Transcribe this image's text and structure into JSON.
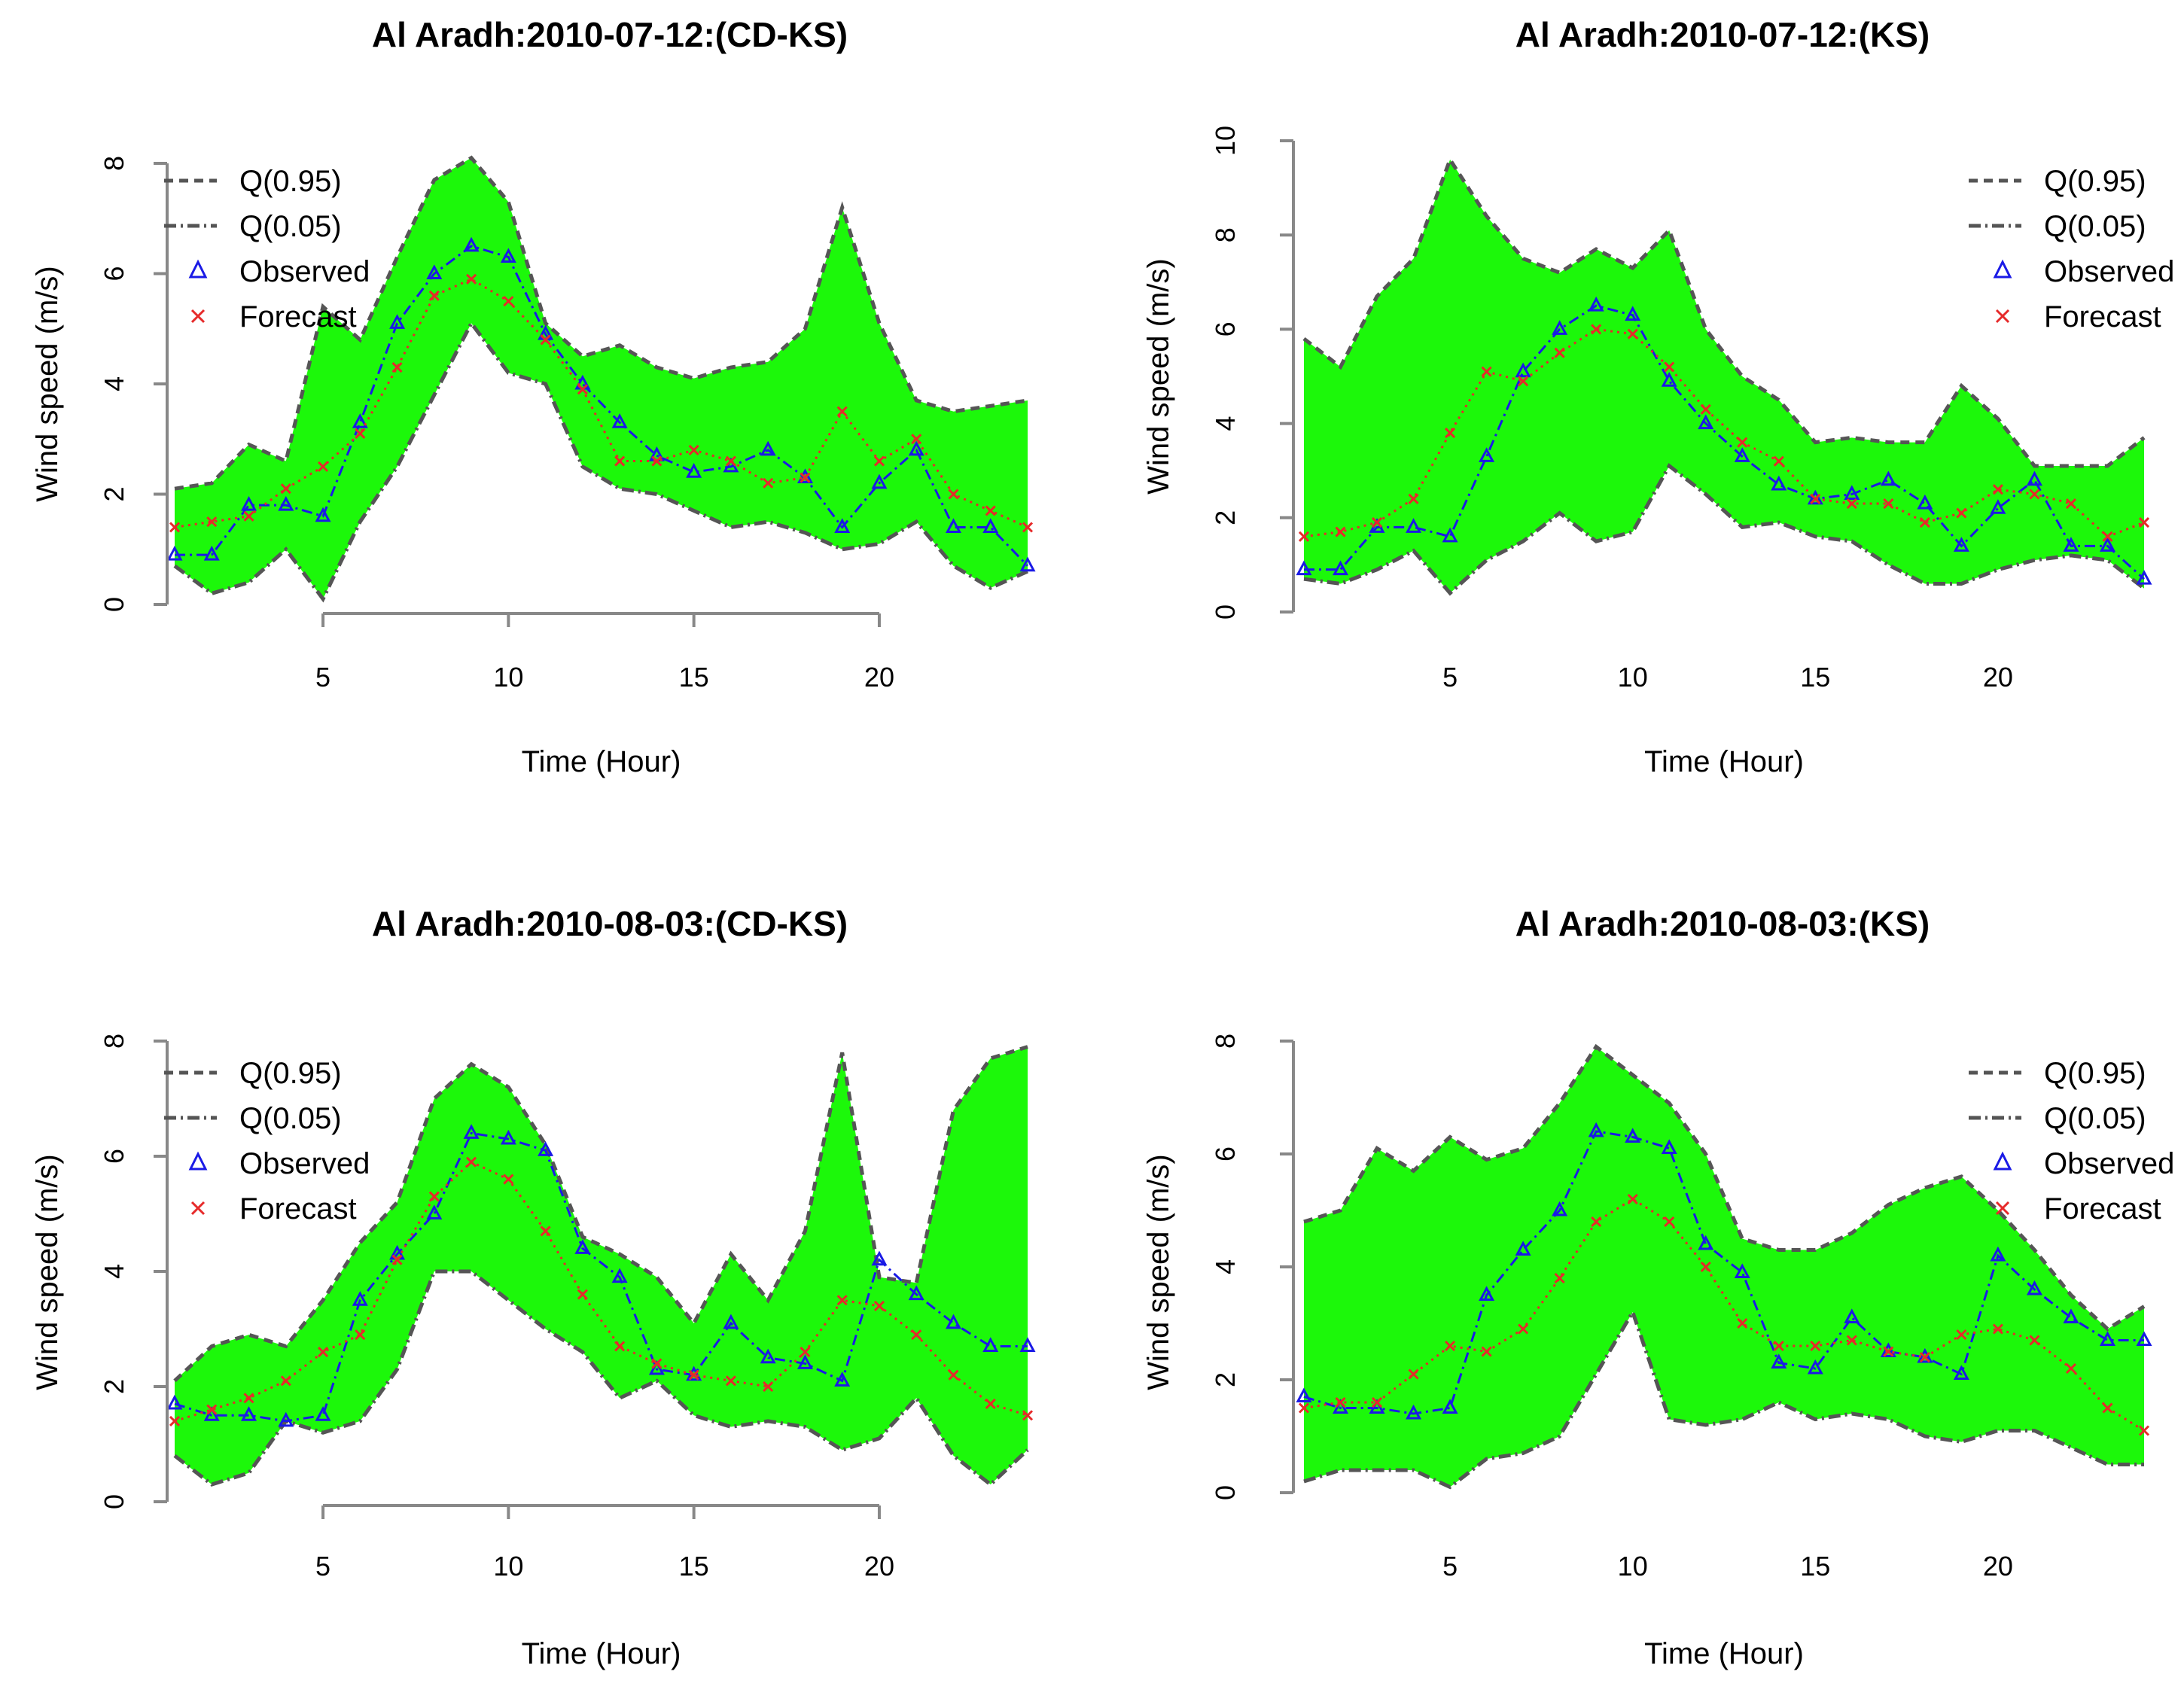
{
  "colors": {
    "band": "#1CF80A",
    "observed": "#1A1AE6",
    "forecast": "#E62A2A",
    "quantile": "#555555"
  },
  "legend": [
    "Q(0.95)",
    "Q(0.05)",
    "Observed",
    "Forecast"
  ],
  "chart_data": [
    {
      "type": "line",
      "title": "Al Aradh:2010-07-12:(CD-KS)",
      "xlabel": "Time (Hour)",
      "ylabel": "Wind speed (m/s)",
      "xlim": [
        1,
        24
      ],
      "ylim": [
        0,
        8
      ],
      "xticks": [
        5,
        10,
        15,
        20
      ],
      "yticks": [
        0,
        2,
        4,
        6,
        8
      ],
      "x": [
        1,
        2,
        3,
        4,
        5,
        6,
        7,
        8,
        9,
        10,
        11,
        12,
        13,
        14,
        15,
        16,
        17,
        18,
        19,
        20,
        21,
        22,
        23,
        24
      ],
      "series": [
        {
          "name": "Q(0.95)",
          "values": [
            2.1,
            2.2,
            2.9,
            2.6,
            5.4,
            4.8,
            6.3,
            7.7,
            8.1,
            7.3,
            5.1,
            4.5,
            4.7,
            4.3,
            4.1,
            4.3,
            4.4,
            5.0,
            7.2,
            5.1,
            3.7,
            3.5,
            3.6,
            3.7
          ]
        },
        {
          "name": "Q(0.05)",
          "values": [
            0.7,
            0.2,
            0.4,
            1.0,
            0.1,
            1.5,
            2.5,
            3.8,
            5.1,
            4.2,
            4.0,
            2.5,
            2.1,
            2.0,
            1.7,
            1.4,
            1.5,
            1.3,
            1.0,
            1.1,
            1.5,
            0.7,
            0.3,
            0.6
          ]
        },
        {
          "name": "Observed",
          "values": [
            0.9,
            0.9,
            1.8,
            1.8,
            1.6,
            3.3,
            5.1,
            6.0,
            6.5,
            6.3,
            4.9,
            4.0,
            3.3,
            2.7,
            2.4,
            2.5,
            2.8,
            2.3,
            1.4,
            2.2,
            2.8,
            1.4,
            1.4,
            0.7
          ]
        },
        {
          "name": "Forecast",
          "values": [
            1.4,
            1.5,
            1.6,
            2.1,
            2.5,
            3.1,
            4.3,
            5.6,
            5.9,
            5.5,
            4.8,
            3.9,
            2.6,
            2.6,
            2.8,
            2.6,
            2.2,
            2.3,
            3.5,
            2.6,
            3.0,
            2.0,
            1.7,
            1.4
          ]
        }
      ]
    },
    {
      "type": "line",
      "title": "Al Aradh:2010-07-12:(KS)",
      "xlabel": "Time (Hour)",
      "ylabel": "Wind speed (m/s)",
      "xlim": [
        1,
        24
      ],
      "ylim": [
        0,
        10
      ],
      "xticks": [
        5,
        10,
        15,
        20
      ],
      "yticks": [
        0,
        2,
        4,
        6,
        8,
        10
      ],
      "x": [
        1,
        2,
        3,
        4,
        5,
        6,
        7,
        8,
        9,
        10,
        11,
        12,
        13,
        14,
        15,
        16,
        17,
        18,
        19,
        20,
        21,
        22,
        23,
        24
      ],
      "series": [
        {
          "name": "Q(0.95)",
          "values": [
            5.8,
            5.2,
            6.7,
            7.5,
            9.6,
            8.4,
            7.5,
            7.2,
            7.7,
            7.3,
            8.1,
            6.0,
            5.0,
            4.5,
            3.6,
            3.7,
            3.6,
            3.6,
            4.8,
            4.1,
            3.1,
            3.1,
            3.1,
            3.7
          ]
        },
        {
          "name": "Q(0.05)",
          "values": [
            0.7,
            0.6,
            0.9,
            1.3,
            0.4,
            1.1,
            1.5,
            2.1,
            1.5,
            1.7,
            3.1,
            2.5,
            1.8,
            1.9,
            1.6,
            1.5,
            1.0,
            0.6,
            0.6,
            0.9,
            1.1,
            1.2,
            1.1,
            0.5
          ]
        },
        {
          "name": "Observed",
          "values": [
            0.9,
            0.9,
            1.8,
            1.8,
            1.6,
            3.3,
            5.1,
            6.0,
            6.5,
            6.3,
            4.9,
            4.0,
            3.3,
            2.7,
            2.4,
            2.5,
            2.8,
            2.3,
            1.4,
            2.2,
            2.8,
            1.4,
            1.4,
            0.7
          ]
        },
        {
          "name": "Forecast",
          "values": [
            1.6,
            1.7,
            1.9,
            2.4,
            3.8,
            5.1,
            4.9,
            5.5,
            6.0,
            5.9,
            5.2,
            4.3,
            3.6,
            3.2,
            2.4,
            2.3,
            2.3,
            1.9,
            2.1,
            2.6,
            2.5,
            2.3,
            1.6,
            1.9
          ]
        }
      ]
    },
    {
      "type": "line",
      "title": "Al Aradh:2010-08-03:(CD-KS)",
      "xlabel": "Time (Hour)",
      "ylabel": "Wind speed (m/s)",
      "xlim": [
        1,
        24
      ],
      "ylim": [
        0,
        8
      ],
      "xticks": [
        5,
        10,
        15,
        20
      ],
      "yticks": [
        0,
        2,
        4,
        6,
        8
      ],
      "x": [
        1,
        2,
        3,
        4,
        5,
        6,
        7,
        8,
        9,
        10,
        11,
        12,
        13,
        14,
        15,
        16,
        17,
        18,
        19,
        20,
        21,
        22,
        23,
        24
      ],
      "series": [
        {
          "name": "Q(0.95)",
          "values": [
            2.1,
            2.7,
            2.9,
            2.7,
            3.5,
            4.5,
            5.2,
            7.0,
            7.6,
            7.2,
            6.2,
            4.6,
            4.3,
            3.9,
            3.1,
            4.3,
            3.5,
            4.7,
            7.8,
            3.9,
            3.8,
            6.8,
            7.7,
            7.9
          ]
        },
        {
          "name": "Q(0.05)",
          "values": [
            0.8,
            0.3,
            0.5,
            1.4,
            1.2,
            1.4,
            2.3,
            4.0,
            4.0,
            3.5,
            3.0,
            2.6,
            1.8,
            2.1,
            1.5,
            1.3,
            1.4,
            1.3,
            0.9,
            1.1,
            1.8,
            0.8,
            0.3,
            0.9
          ]
        },
        {
          "name": "Observed",
          "values": [
            1.7,
            1.5,
            1.5,
            1.4,
            1.5,
            3.5,
            4.3,
            5.0,
            6.4,
            6.3,
            6.1,
            4.4,
            3.9,
            2.3,
            2.2,
            3.1,
            2.5,
            2.4,
            2.1,
            4.2,
            3.6,
            3.1,
            2.7,
            2.7
          ]
        },
        {
          "name": "Forecast",
          "values": [
            1.4,
            1.6,
            1.8,
            2.1,
            2.6,
            2.9,
            4.2,
            5.3,
            5.9,
            5.6,
            4.7,
            3.6,
            2.7,
            2.4,
            2.2,
            2.1,
            2.0,
            2.6,
            3.5,
            3.4,
            2.9,
            2.2,
            1.7,
            1.5
          ]
        }
      ]
    },
    {
      "type": "line",
      "title": "Al Aradh:2010-08-03:(KS)",
      "xlabel": "Time (Hour)",
      "ylabel": "Wind speed (m/s)",
      "xlim": [
        1,
        24
      ],
      "ylim": [
        0,
        8
      ],
      "xticks": [
        5,
        10,
        15,
        20
      ],
      "yticks": [
        0,
        2,
        4,
        6,
        8
      ],
      "x": [
        1,
        2,
        3,
        4,
        5,
        6,
        7,
        8,
        9,
        10,
        11,
        12,
        13,
        14,
        15,
        16,
        17,
        18,
        19,
        20,
        21,
        22,
        23,
        24
      ],
      "series": [
        {
          "name": "Q(0.95)",
          "values": [
            4.8,
            5.0,
            6.1,
            5.7,
            6.3,
            5.9,
            6.1,
            6.9,
            7.9,
            7.4,
            6.9,
            6.0,
            4.5,
            4.3,
            4.3,
            4.6,
            5.1,
            5.4,
            5.6,
            5.0,
            4.3,
            3.5,
            2.9,
            3.3
          ]
        },
        {
          "name": "Q(0.05)",
          "values": [
            0.2,
            0.4,
            0.4,
            0.4,
            0.1,
            0.6,
            0.7,
            1.0,
            2.1,
            3.2,
            1.3,
            1.2,
            1.3,
            1.6,
            1.3,
            1.4,
            1.3,
            1.0,
            0.9,
            1.1,
            1.1,
            0.8,
            0.5,
            0.5
          ]
        },
        {
          "name": "Observed",
          "values": [
            1.7,
            1.5,
            1.5,
            1.4,
            1.5,
            3.5,
            4.3,
            5.0,
            6.4,
            6.3,
            6.1,
            4.4,
            3.9,
            2.3,
            2.2,
            3.1,
            2.5,
            2.4,
            2.1,
            4.2,
            3.6,
            3.1,
            2.7,
            2.7
          ]
        },
        {
          "name": "Forecast",
          "values": [
            1.5,
            1.6,
            1.6,
            2.1,
            2.6,
            2.5,
            2.9,
            3.8,
            4.8,
            5.2,
            4.8,
            4.0,
            3.0,
            2.6,
            2.6,
            2.7,
            2.5,
            2.4,
            2.8,
            2.9,
            2.7,
            2.2,
            1.5,
            1.1
          ]
        }
      ]
    }
  ]
}
